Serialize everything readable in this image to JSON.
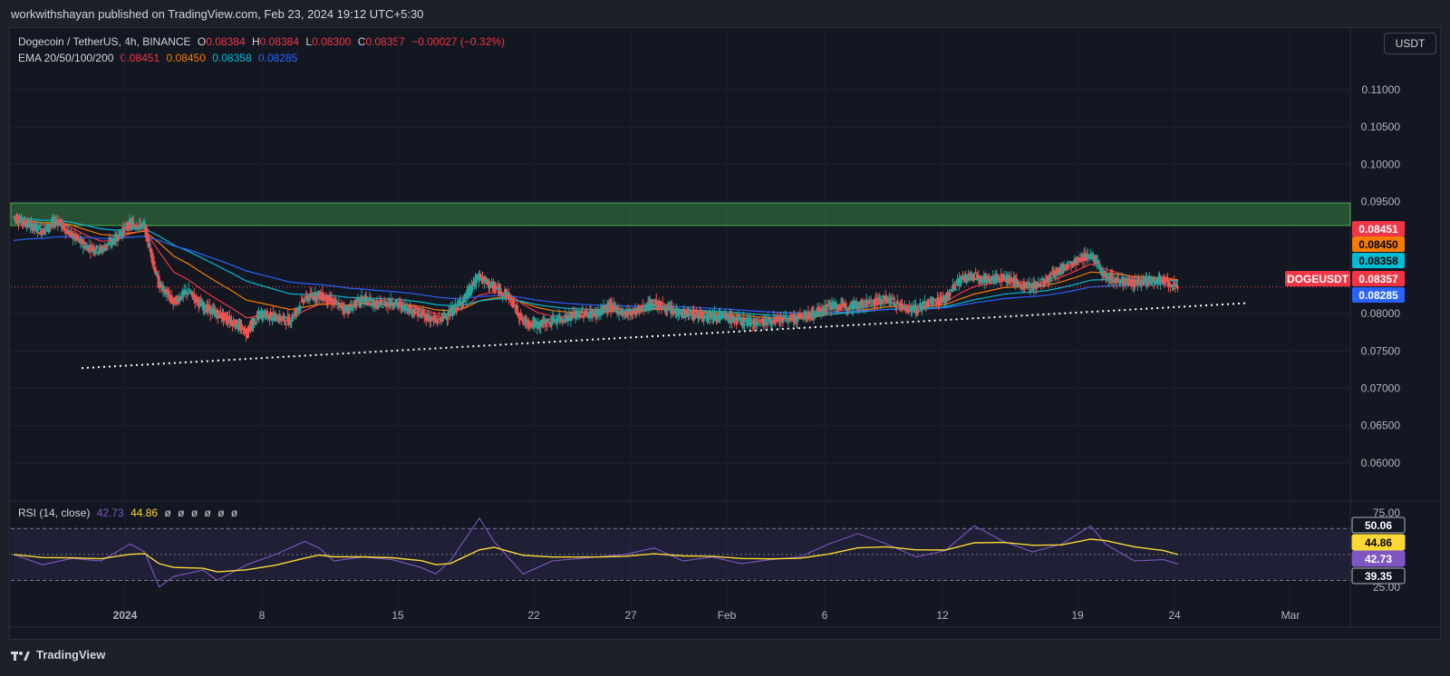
{
  "header": {
    "published": "workwithshayan published on TradingView.com, Feb 23, 2024 19:12 UTC+5:30"
  },
  "legend": {
    "symbol": "Dogecoin / TetherUS, 4h, BINANCE",
    "o_label": "O",
    "o": "0.08384",
    "h_label": "H",
    "h": "0.08384",
    "l_label": "L",
    "l": "0.08300",
    "c_label": "C",
    "c": "0.08357",
    "change": "−0.00027 (−0.32%)",
    "ema_label": "EMA 20/50/100/200",
    "ema20": "0.08451",
    "ema50": "0.08450",
    "ema100": "0.08358",
    "ema200": "0.08285"
  },
  "rsi_legend": {
    "label": "RSI (14, close)",
    "rsi": "42.73",
    "ma": "44.86",
    "empties": [
      "ø",
      "ø",
      "ø",
      "ø",
      "ø",
      "ø"
    ]
  },
  "currency_button": "USDT",
  "footer_brand": "TradingView",
  "colors": {
    "up": "#26a69a",
    "down": "#ef5350",
    "ema20": "#f23645",
    "ema50": "#f57c00",
    "ema100": "#00bcd4",
    "ema200": "#2962ff",
    "rsi": "#7e57c2",
    "rsi_ma": "#fdd835",
    "zone": "#4caf50"
  },
  "chart_data": [
    {
      "type": "candlestick",
      "title": "Dogecoin / TetherUS, 4h, BINANCE",
      "yticks": [
        "0.11000",
        "0.10500",
        "0.10000",
        "0.09500",
        "0.08000",
        "0.07500",
        "0.07000",
        "0.06500",
        "0.06000"
      ],
      "ylim": [
        0.0555,
        0.1135
      ],
      "xticks": [
        "2024",
        "8",
        "15",
        "22",
        "27",
        "Feb",
        "6",
        "12",
        "19",
        "24",
        "Mar"
      ],
      "price_tags": [
        {
          "label": "0.08451",
          "value": 0.08451,
          "color": "#f23645"
        },
        {
          "label": "0.08450",
          "value": 0.0845,
          "color": "#f57c00"
        },
        {
          "label": "0.08358",
          "value": 0.08358,
          "color": "#00bcd4"
        },
        {
          "label": "0.08357",
          "value": 0.08357,
          "color": "#f23645",
          "symbol": "DOGEUSDT"
        },
        {
          "label": "0.08285",
          "value": 0.08285,
          "color": "#2962ff"
        }
      ],
      "resistance_zone": [
        0.0918,
        0.0948
      ],
      "support_line": {
        "start": [
          "Dec 31",
          0.0727
        ],
        "end": [
          "Feb 28",
          0.0814
        ]
      },
      "close_path": [
        [
          0,
          0.093
        ],
        [
          1,
          0.092
        ],
        [
          2,
          0.091
        ],
        [
          3,
          0.0925
        ],
        [
          4,
          0.0905
        ],
        [
          5,
          0.089
        ],
        [
          6,
          0.0885
        ],
        [
          7,
          0.09
        ],
        [
          8,
          0.092
        ],
        [
          9,
          0.0918
        ],
        [
          10,
          0.084
        ],
        [
          11,
          0.0815
        ],
        [
          12,
          0.083
        ],
        [
          13,
          0.081
        ],
        [
          14,
          0.08
        ],
        [
          15,
          0.079
        ],
        [
          16,
          0.0775
        ],
        [
          17,
          0.08
        ],
        [
          18,
          0.0795
        ],
        [
          19,
          0.079
        ],
        [
          20,
          0.082
        ],
        [
          21,
          0.0825
        ],
        [
          22,
          0.0815
        ],
        [
          23,
          0.0805
        ],
        [
          24,
          0.082
        ],
        [
          25,
          0.0812
        ],
        [
          26,
          0.0815
        ],
        [
          27,
          0.0808
        ],
        [
          28,
          0.08
        ],
        [
          29,
          0.079
        ],
        [
          30,
          0.08
        ],
        [
          31,
          0.082
        ],
        [
          32,
          0.085
        ],
        [
          33,
          0.0835
        ],
        [
          34,
          0.0825
        ],
        [
          35,
          0.079
        ],
        [
          36,
          0.0785
        ],
        [
          37,
          0.079
        ],
        [
          38,
          0.0795
        ],
        [
          39,
          0.08
        ],
        [
          40,
          0.08
        ],
        [
          41,
          0.081
        ],
        [
          42,
          0.08
        ],
        [
          43,
          0.0805
        ],
        [
          44,
          0.0815
        ],
        [
          45,
          0.0805
        ],
        [
          46,
          0.08
        ],
        [
          47,
          0.0798
        ],
        [
          48,
          0.0798
        ],
        [
          49,
          0.0795
        ],
        [
          50,
          0.079
        ],
        [
          51,
          0.0788
        ],
        [
          52,
          0.079
        ],
        [
          53,
          0.0792
        ],
        [
          54,
          0.0795
        ],
        [
          55,
          0.08
        ],
        [
          56,
          0.081
        ],
        [
          57,
          0.081
        ],
        [
          58,
          0.0812
        ],
        [
          59,
          0.0815
        ],
        [
          60,
          0.082
        ],
        [
          61,
          0.081
        ],
        [
          62,
          0.0805
        ],
        [
          63,
          0.0815
        ],
        [
          64,
          0.082
        ],
        [
          65,
          0.0845
        ],
        [
          66,
          0.085
        ],
        [
          67,
          0.0845
        ],
        [
          68,
          0.085
        ],
        [
          69,
          0.084
        ],
        [
          70,
          0.0835
        ],
        [
          71,
          0.0845
        ],
        [
          72,
          0.086
        ],
        [
          73,
          0.087
        ],
        [
          74,
          0.088
        ],
        [
          75,
          0.085
        ],
        [
          76,
          0.0845
        ],
        [
          77,
          0.084
        ],
        [
          78,
          0.0845
        ],
        [
          79,
          0.0845
        ],
        [
          80,
          0.0836
        ]
      ]
    },
    {
      "type": "line",
      "title": "RSI (14, close)",
      "yticks": [
        "75.00",
        "25.00"
      ],
      "value_tags": [
        {
          "label": "50.06",
          "value": 50.06
        },
        {
          "label": "44.86",
          "value": 44.86
        },
        {
          "label": "42.73",
          "value": 42.73
        },
        {
          "label": "39.35",
          "value": 39.35
        }
      ],
      "ylim": [
        22,
        82
      ],
      "rsi_path": [
        [
          0,
          50
        ],
        [
          2,
          42
        ],
        [
          4,
          47
        ],
        [
          6,
          45
        ],
        [
          8,
          58
        ],
        [
          9,
          52
        ],
        [
          10,
          25
        ],
        [
          11,
          33
        ],
        [
          13,
          38
        ],
        [
          14,
          30
        ],
        [
          16,
          42
        ],
        [
          18,
          50
        ],
        [
          20,
          60
        ],
        [
          21,
          55
        ],
        [
          22,
          45
        ],
        [
          24,
          48
        ],
        [
          26,
          46
        ],
        [
          28,
          40
        ],
        [
          29,
          35
        ],
        [
          30,
          45
        ],
        [
          32,
          78
        ],
        [
          33,
          60
        ],
        [
          35,
          35
        ],
        [
          37,
          45
        ],
        [
          40,
          48
        ],
        [
          42,
          50
        ],
        [
          44,
          55
        ],
        [
          46,
          45
        ],
        [
          48,
          48
        ],
        [
          50,
          43
        ],
        [
          52,
          46
        ],
        [
          54,
          48
        ],
        [
          56,
          58
        ],
        [
          58,
          66
        ],
        [
          60,
          58
        ],
        [
          62,
          48
        ],
        [
          64,
          53
        ],
        [
          66,
          72
        ],
        [
          68,
          60
        ],
        [
          70,
          52
        ],
        [
          72,
          58
        ],
        [
          74,
          72
        ],
        [
          75,
          58
        ],
        [
          77,
          45
        ],
        [
          79,
          46
        ],
        [
          80,
          42.73
        ]
      ]
    }
  ]
}
